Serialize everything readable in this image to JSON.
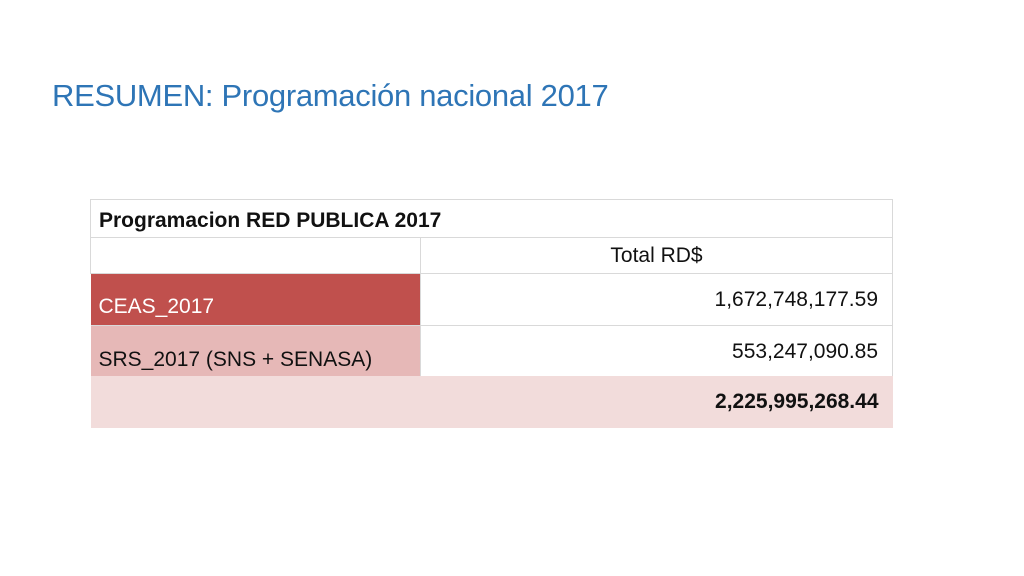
{
  "slide": {
    "title": "RESUMEN: Programación nacional 2017"
  },
  "table": {
    "heading": "Programacion RED PUBLICA 2017",
    "column_header": "Total RD$",
    "rows": [
      {
        "name": "CEAS_2017",
        "value": "1,672,748,177.59"
      },
      {
        "name": "SRS_2017 (SNS + SENASA)",
        "value": "553,247,090.85"
      }
    ],
    "total": "2,225,995,268.44"
  },
  "colors": {
    "title": "#2e75b6",
    "ceas_fill": "#c0504d",
    "srs_fill": "#e6b8b7",
    "total_fill": "#f2dcdb"
  }
}
